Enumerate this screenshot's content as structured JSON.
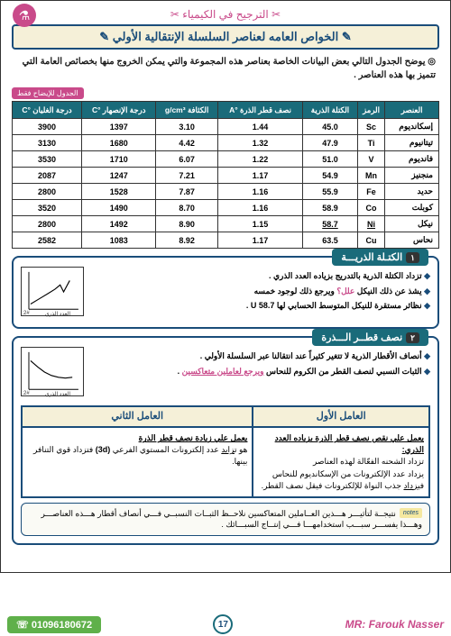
{
  "header": {
    "deco": "✂ الترجيح في الكيمياء ✂",
    "logo": "⚗"
  },
  "title": "✎ الخواص العامه لعناصر السلسلة الإنتقالية الأولي ✎",
  "intro": "◎ يوضح الجدول التالي بعض البيانات الخاصة بعناصر هذه المجموعة والتي يمكن الخروج منها بخصائص العامة التي تتميز بها هذه العناصر .",
  "tblLabel": "الجدول للإيضاح فقط",
  "table": {
    "headers": [
      "العنصر",
      "الرمز",
      "الكتلة الذرية",
      "نصف قطر الذرة °A",
      "الكثافة g/cm³",
      "درجة الإنصهار °C",
      "درجة الغليان °C"
    ],
    "rows": [
      [
        "إسكانديوم",
        "Sc",
        "45.0",
        "1.44",
        "3.10",
        "1397",
        "3900"
      ],
      [
        "تيتانيوم",
        "Ti",
        "47.9",
        "1.32",
        "4.42",
        "1680",
        "3130"
      ],
      [
        "فانديوم",
        "V",
        "51.0",
        "1.22",
        "6.07",
        "1710",
        "3530"
      ],
      [
        "منجنيز",
        "Mn",
        "54.9",
        "1.17",
        "7.21",
        "1247",
        "2087"
      ],
      [
        "حديد",
        "Fe",
        "55.9",
        "1.16",
        "7.87",
        "1528",
        "2800"
      ],
      [
        "كوبلت",
        "Co",
        "58.9",
        "1.16",
        "8.70",
        "1490",
        "3520"
      ],
      [
        "نيكل",
        "Ni",
        "58.7",
        "1.15",
        "8.90",
        "1492",
        "2800"
      ],
      [
        "نحاس",
        "Cu",
        "63.5",
        "1.17",
        "8.92",
        "1083",
        "2582"
      ]
    ]
  },
  "sec1": {
    "num": "١",
    "title": "الكتـلة الذريـــة",
    "lines": [
      "تزداد الكتلة الذرية بالتدريج بزياده العدد الذري .",
      "يشذ عن ذلك النيكل <span class='hl'>علل؟</span> ويرجع ذلك لوجود خمسه",
      "نظائر مستقرة للنيكل المتوسط الحسابي لها 58.7 U ."
    ],
    "xlabel": "العدد الذري",
    "arrow": "2#"
  },
  "sec2": {
    "num": "٢",
    "title": "نصف قطــر الـــذرة",
    "lines": [
      "أنصاف الأقطار الذرية لا تتغير كثيراً عند انتقالنا عبر السلسلة الأولي .",
      "الثبات النسبي لنصف القطر من الكروم للنحاس <span class='hl ul'>ويرجع لعاملين متعاكسين</span> ."
    ],
    "xlabel": "العدد الذري",
    "arrow": "2#",
    "factors": {
      "h1": "العامل الأول",
      "h2": "العامل الثاني",
      "c1": "<b class='ul'>يعمل علي نقص نصف قطر الذرة بزياده العدد الذري:</b><br>تزداد الشحنه الفعّالة لهذه العناصر<br>يزداد عدد الإلكترونات من الإسكانديوم للنحاس<br>ف<u>يزداد</u> جذب النواة للإلكترونات فيقل نصف القطر.",
      "c2": "<b class='ul'>يعمل علي زيادة نصف قطر الذرة</b><br>هو ت<u>زايد</u> عدد إلكترونات المستوي الفرعي <b>(3d)</b> فتزداد قوي التنافر بينها."
    },
    "note": "نتيجــة لتأثيـــر هـــذين العــاملين المتعاكسين نلاحــظ الثبــات النسبــي فـــي أنصاف أقطار هـــذه العناصـــر وهـــذا يفســـر سبـــب استخدامهـــا فـــي إنتــاج السبـــائك .",
    "noteTag": "notes"
  },
  "footer": {
    "phone": "☏ 01096180672",
    "page": "17",
    "author": "MR: Farouk Nasser"
  }
}
